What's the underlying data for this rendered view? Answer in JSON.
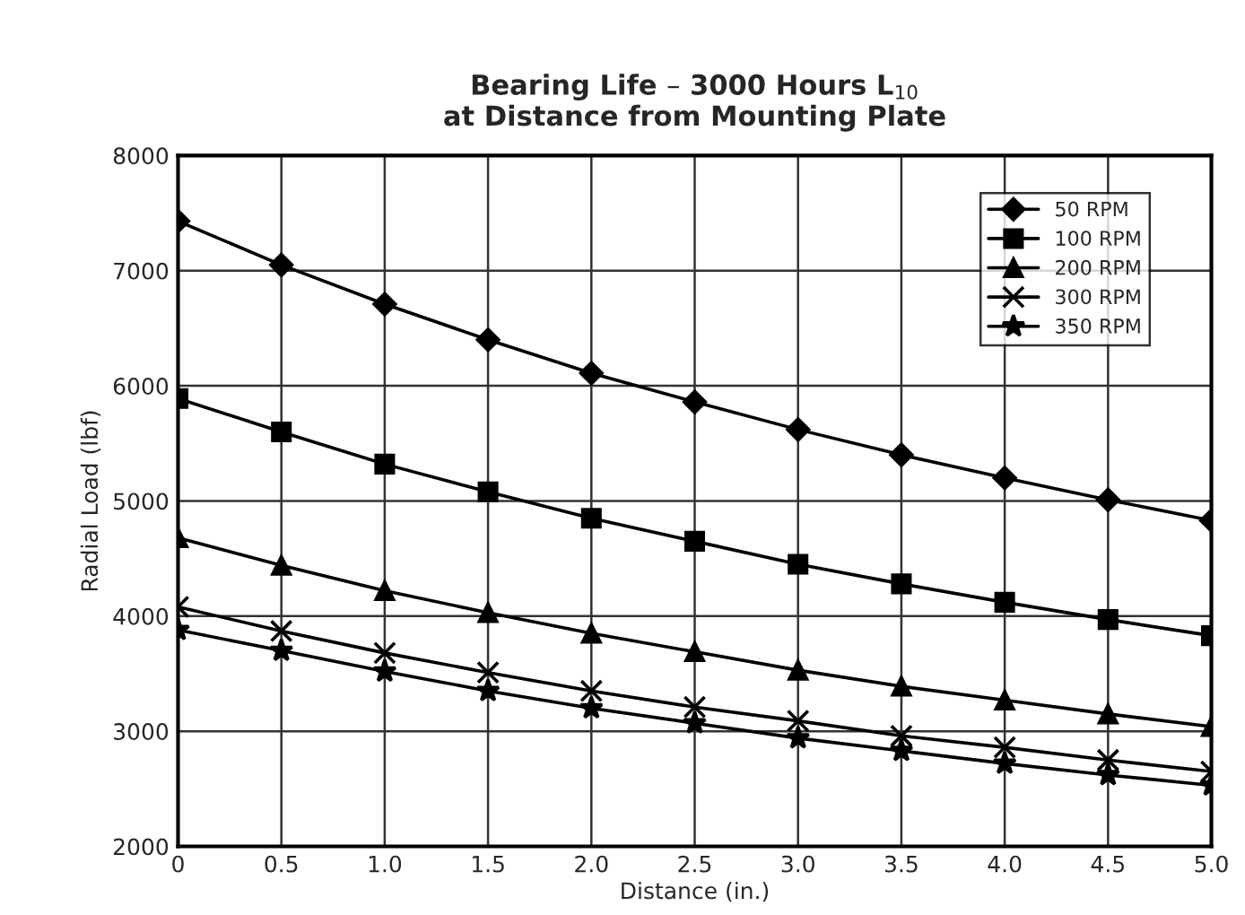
{
  "chart_data": {
    "type": "line",
    "title": "Bearing Life – 3000 Hours L$_{10}$\nat Distance from Mounting Plate",
    "xlabel": "Distance (in.)",
    "ylabel": "Radial Load (lbf)",
    "x": [
      0,
      0.5,
      1.0,
      1.5,
      2.0,
      2.5,
      3.0,
      3.5,
      4.0,
      4.5,
      5.0
    ],
    "series": [
      {
        "name": "50 RPM",
        "color": "#000000",
        "marker": "diamond",
        "values": [
          7430,
          7050,
          6710,
          6400,
          6110,
          5860,
          5620,
          5400,
          5200,
          5010,
          4830
        ]
      },
      {
        "name": "100 RPM",
        "color": "#000000",
        "marker": "square",
        "values": [
          5890,
          5600,
          5320,
          5080,
          4850,
          4650,
          4450,
          4280,
          4120,
          3970,
          3830
        ]
      },
      {
        "name": "200 RPM",
        "color": "#000000",
        "marker": "triangle",
        "values": [
          4680,
          4440,
          4220,
          4030,
          3850,
          3690,
          3530,
          3390,
          3270,
          3150,
          3040
        ]
      },
      {
        "name": "300 RPM",
        "color": "#000000",
        "marker": "cross",
        "values": [
          4080,
          3870,
          3680,
          3510,
          3350,
          3210,
          3090,
          2960,
          2860,
          2750,
          2650
        ]
      },
      {
        "name": "350 RPM",
        "color": "#000000",
        "marker": "star",
        "values": [
          3880,
          3700,
          3520,
          3350,
          3200,
          3070,
          2940,
          2830,
          2720,
          2620,
          2530
        ]
      }
    ],
    "xlim": [
      0,
      5.0
    ],
    "ylim": [
      2000,
      8000
    ],
    "xticks": [
      0,
      {
        "value": 0.5,
        "label": "0.5"
      },
      {
        "value": 1.0,
        "label": "1.0"
      },
      {
        "value": 1.5,
        "label": "1.5"
      },
      {
        "value": 2.0,
        "label": "2.0"
      },
      {
        "value": 2.5,
        "label": "2.5"
      },
      {
        "value": 3.0,
        "label": "3.0"
      },
      {
        "value": 3.5,
        "label": "3.5"
      },
      {
        "value": 4.0,
        "label": "4.0"
      },
      {
        "value": 4.5,
        "label": "4.5"
      },
      {
        "value": 5.0,
        "label": "5.0"
      }
    ],
    "yticks": [
      2000,
      3000,
      4000,
      5000,
      6000,
      7000,
      8000
    ],
    "grid": true,
    "legend": "top right",
    "line_style": "solid"
  }
}
